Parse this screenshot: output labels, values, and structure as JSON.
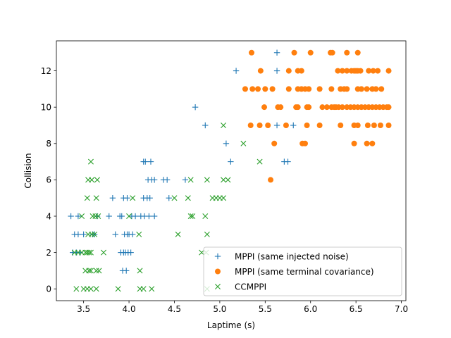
{
  "chart_data": {
    "type": "scatter",
    "title": "",
    "xlabel": "Laptime (s)",
    "ylabel": "Collision",
    "xlim": [
      3.2,
      7.05
    ],
    "ylim": [
      -0.65,
      13.65
    ],
    "xticks": [
      {
        "value": 3.5,
        "label": "3.5"
      },
      {
        "value": 4.0,
        "label": "4.0"
      },
      {
        "value": 4.5,
        "label": "4.5"
      },
      {
        "value": 5.0,
        "label": "5.0"
      },
      {
        "value": 5.5,
        "label": "5.5"
      },
      {
        "value": 6.0,
        "label": "6.0"
      },
      {
        "value": 6.5,
        "label": "6.5"
      },
      {
        "value": 7.0,
        "label": "7.0"
      }
    ],
    "yticks": [
      {
        "value": 0,
        "label": "0"
      },
      {
        "value": 2,
        "label": "2"
      },
      {
        "value": 4,
        "label": "4"
      },
      {
        "value": 6,
        "label": "6"
      },
      {
        "value": 8,
        "label": "8"
      },
      {
        "value": 10,
        "label": "10"
      },
      {
        "value": 12,
        "label": "12"
      }
    ],
    "grid": false,
    "legend_position": "lower-right",
    "series": [
      {
        "name": "MPPI (same injected noise)",
        "marker": "plus",
        "color": "#1f77b4",
        "points": [
          [
            3.36,
            4
          ],
          [
            3.44,
            4
          ],
          [
            3.4,
            3
          ],
          [
            3.44,
            3
          ],
          [
            3.5,
            3
          ],
          [
            3.38,
            2
          ],
          [
            3.42,
            2
          ],
          [
            3.46,
            2
          ],
          [
            3.6,
            3
          ],
          [
            3.62,
            3
          ],
          [
            3.65,
            4
          ],
          [
            3.78,
            4
          ],
          [
            3.82,
            5
          ],
          [
            3.9,
            4
          ],
          [
            3.92,
            4
          ],
          [
            3.85,
            3
          ],
          [
            3.95,
            3
          ],
          [
            3.98,
            3
          ],
          [
            4.0,
            3
          ],
          [
            4.04,
            3
          ],
          [
            3.91,
            2
          ],
          [
            3.94,
            2
          ],
          [
            3.96,
            2
          ],
          [
            3.99,
            2
          ],
          [
            4.02,
            2
          ],
          [
            3.93,
            1
          ],
          [
            3.97,
            1
          ],
          [
            3.94,
            5
          ],
          [
            3.98,
            5
          ],
          [
            4.03,
            4
          ],
          [
            4.07,
            4
          ],
          [
            4.13,
            4
          ],
          [
            4.17,
            4
          ],
          [
            4.22,
            4
          ],
          [
            4.28,
            4
          ],
          [
            4.16,
            5
          ],
          [
            4.2,
            5
          ],
          [
            4.23,
            5
          ],
          [
            4.16,
            7
          ],
          [
            4.18,
            7
          ],
          [
            4.24,
            7
          ],
          [
            4.21,
            6
          ],
          [
            4.25,
            6
          ],
          [
            4.28,
            6
          ],
          [
            4.38,
            6
          ],
          [
            4.42,
            6
          ],
          [
            4.44,
            5
          ],
          [
            4.62,
            6
          ],
          [
            4.73,
            10
          ],
          [
            4.84,
            9
          ],
          [
            5.07,
            8
          ],
          [
            5.12,
            7
          ],
          [
            5.18,
            12
          ],
          [
            5.63,
            13
          ],
          [
            5.63,
            12
          ],
          [
            5.63,
            9
          ],
          [
            5.71,
            7
          ],
          [
            5.75,
            7
          ],
          [
            5.81,
            9
          ]
        ]
      },
      {
        "name": "MPPI (same terminal covariance)",
        "marker": "circle",
        "color": "#ff7f0e",
        "points": [
          [
            5.35,
            13
          ],
          [
            5.82,
            13
          ],
          [
            6.0,
            13
          ],
          [
            6.22,
            13
          ],
          [
            6.24,
            13
          ],
          [
            6.4,
            13
          ],
          [
            6.52,
            13
          ],
          [
            5.45,
            12
          ],
          [
            5.76,
            12
          ],
          [
            5.86,
            12
          ],
          [
            5.9,
            12
          ],
          [
            6.3,
            12
          ],
          [
            6.35,
            12
          ],
          [
            6.4,
            12
          ],
          [
            6.45,
            12
          ],
          [
            6.48,
            12
          ],
          [
            6.5,
            12
          ],
          [
            6.52,
            12
          ],
          [
            6.55,
            12
          ],
          [
            6.64,
            12
          ],
          [
            6.69,
            12
          ],
          [
            6.74,
            12
          ],
          [
            6.86,
            12
          ],
          [
            5.28,
            11
          ],
          [
            5.36,
            11
          ],
          [
            5.42,
            11
          ],
          [
            5.5,
            11
          ],
          [
            5.58,
            11
          ],
          [
            5.76,
            11
          ],
          [
            5.86,
            11
          ],
          [
            5.9,
            11
          ],
          [
            5.94,
            11
          ],
          [
            5.98,
            11
          ],
          [
            6.1,
            11
          ],
          [
            6.23,
            11
          ],
          [
            6.33,
            11
          ],
          [
            6.37,
            11
          ],
          [
            6.4,
            11
          ],
          [
            6.52,
            11
          ],
          [
            6.56,
            11
          ],
          [
            6.62,
            11
          ],
          [
            6.68,
            11
          ],
          [
            6.72,
            11
          ],
          [
            6.78,
            11
          ],
          [
            5.49,
            10
          ],
          [
            5.64,
            10
          ],
          [
            5.67,
            10
          ],
          [
            5.84,
            10
          ],
          [
            5.86,
            10
          ],
          [
            5.96,
            10
          ],
          [
            5.98,
            10
          ],
          [
            6.13,
            10
          ],
          [
            6.18,
            10
          ],
          [
            6.23,
            10
          ],
          [
            6.26,
            10
          ],
          [
            6.28,
            10
          ],
          [
            6.31,
            10
          ],
          [
            6.35,
            10
          ],
          [
            6.4,
            10
          ],
          [
            6.44,
            10
          ],
          [
            6.48,
            10
          ],
          [
            6.52,
            10
          ],
          [
            6.56,
            10
          ],
          [
            6.6,
            10
          ],
          [
            6.64,
            10
          ],
          [
            6.68,
            10
          ],
          [
            6.72,
            10
          ],
          [
            6.76,
            10
          ],
          [
            6.8,
            10
          ],
          [
            6.84,
            10
          ],
          [
            6.86,
            10
          ],
          [
            5.34,
            9
          ],
          [
            5.44,
            9
          ],
          [
            5.53,
            9
          ],
          [
            5.73,
            9
          ],
          [
            5.96,
            9
          ],
          [
            6.1,
            9
          ],
          [
            6.33,
            9
          ],
          [
            6.48,
            9
          ],
          [
            6.52,
            9
          ],
          [
            6.63,
            9
          ],
          [
            6.7,
            9
          ],
          [
            6.77,
            9
          ],
          [
            6.86,
            9
          ],
          [
            5.6,
            8
          ],
          [
            5.91,
            8
          ],
          [
            5.94,
            8
          ],
          [
            6.48,
            8
          ],
          [
            6.62,
            8
          ],
          [
            6.68,
            8
          ],
          [
            5.56,
            6
          ]
        ]
      },
      {
        "name": "CCMPPI",
        "marker": "x",
        "color": "#2ca02c",
        "points": [
          [
            3.58,
            7
          ],
          [
            3.59,
            6
          ],
          [
            3.55,
            6
          ],
          [
            3.65,
            6
          ],
          [
            3.54,
            5
          ],
          [
            3.64,
            5
          ],
          [
            3.48,
            4
          ],
          [
            3.6,
            4
          ],
          [
            3.63,
            4
          ],
          [
            3.66,
            4
          ],
          [
            3.59,
            3
          ],
          [
            3.62,
            3
          ],
          [
            3.55,
            3
          ],
          [
            3.4,
            2
          ],
          [
            3.44,
            2
          ],
          [
            3.48,
            2
          ],
          [
            3.52,
            2
          ],
          [
            3.54,
            2
          ],
          [
            3.56,
            2
          ],
          [
            3.58,
            2
          ],
          [
            3.72,
            2
          ],
          [
            3.52,
            1
          ],
          [
            3.56,
            1
          ],
          [
            3.58,
            1
          ],
          [
            3.64,
            1
          ],
          [
            3.67,
            1
          ],
          [
            3.42,
            0
          ],
          [
            3.5,
            0
          ],
          [
            3.54,
            0
          ],
          [
            3.58,
            0
          ],
          [
            3.64,
            0
          ],
          [
            3.88,
            0
          ],
          [
            4.12,
            0
          ],
          [
            4.16,
            0
          ],
          [
            4.25,
            0
          ],
          [
            4.12,
            1
          ],
          [
            4.11,
            3
          ],
          [
            4.0,
            4
          ],
          [
            4.04,
            5
          ],
          [
            4.54,
            3
          ],
          [
            4.5,
            5
          ],
          [
            4.65,
            5
          ],
          [
            4.68,
            4
          ],
          [
            4.7,
            4
          ],
          [
            4.68,
            6
          ],
          [
            4.84,
            4
          ],
          [
            4.86,
            3
          ],
          [
            4.8,
            2
          ],
          [
            4.85,
            2
          ],
          [
            4.86,
            6
          ],
          [
            4.92,
            5
          ],
          [
            4.96,
            5
          ],
          [
            5.0,
            5
          ],
          [
            5.04,
            5
          ],
          [
            5.04,
            6
          ],
          [
            5.09,
            6
          ],
          [
            5.04,
            9
          ],
          [
            5.26,
            8
          ],
          [
            5.44,
            7
          ],
          [
            4.86,
            0
          ]
        ]
      }
    ]
  }
}
